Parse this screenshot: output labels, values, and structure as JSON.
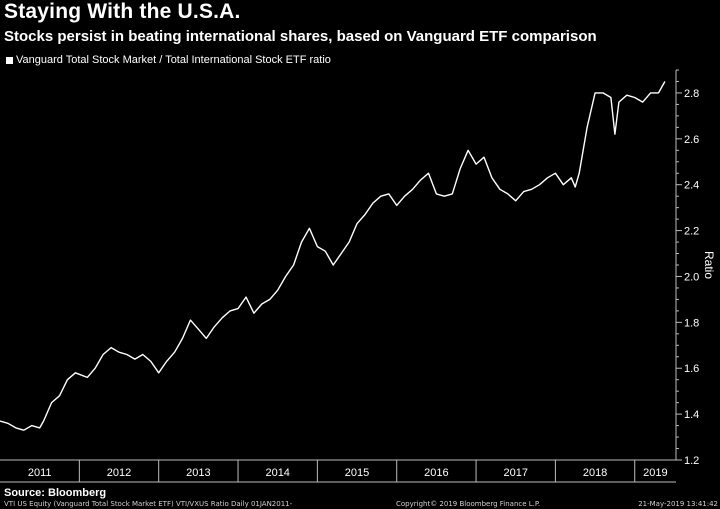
{
  "chart_data": {
    "type": "line",
    "title": "Staying With the U.S.A.",
    "subtitle": "Stocks persist in beating international shares, based on Vanguard ETF comparison",
    "xlabel": "",
    "ylabel": "Ratio",
    "ylim": [
      1.2,
      2.9
    ],
    "yticks": [
      "1.2",
      "1.4",
      "1.6",
      "1.8",
      "2.0",
      "2.2",
      "2.4",
      "2.6",
      "2.8"
    ],
    "categories": [
      "2011",
      "2012",
      "2013",
      "2014",
      "2015",
      "2016",
      "2017",
      "2018",
      "2019"
    ],
    "legend_position": "top-left",
    "grid": false,
    "series": [
      {
        "name": "Vanguard Total Stock Market / Total International Stock ETF ratio",
        "color": "#ffffff",
        "x": [
          2011.0,
          2011.1,
          2011.2,
          2011.3,
          2011.4,
          2011.5,
          2011.55,
          2011.65,
          2011.75,
          2011.85,
          2011.95,
          2012.1,
          2012.2,
          2012.3,
          2012.4,
          2012.5,
          2012.6,
          2012.7,
          2012.8,
          2012.9,
          2013.0,
          2013.1,
          2013.2,
          2013.3,
          2013.4,
          2013.5,
          2013.6,
          2013.7,
          2013.8,
          2013.9,
          2014.0,
          2014.1,
          2014.2,
          2014.3,
          2014.4,
          2014.5,
          2014.6,
          2014.7,
          2014.8,
          2014.9,
          2015.0,
          2015.1,
          2015.2,
          2015.3,
          2015.4,
          2015.5,
          2015.6,
          2015.7,
          2015.8,
          2015.9,
          2016.0,
          2016.1,
          2016.2,
          2016.3,
          2016.4,
          2016.5,
          2016.6,
          2016.7,
          2016.8,
          2016.9,
          2017.0,
          2017.1,
          2017.2,
          2017.3,
          2017.4,
          2017.5,
          2017.6,
          2017.7,
          2017.8,
          2017.9,
          2018.0,
          2018.1,
          2018.2,
          2018.25,
          2018.3,
          2018.4,
          2018.5,
          2018.6,
          2018.7,
          2018.75,
          2018.8,
          2018.9,
          2019.0,
          2019.1,
          2019.2,
          2019.3,
          2019.38
        ],
        "values": [
          1.37,
          1.36,
          1.34,
          1.33,
          1.35,
          1.34,
          1.37,
          1.45,
          1.48,
          1.55,
          1.58,
          1.56,
          1.6,
          1.66,
          1.69,
          1.67,
          1.66,
          1.64,
          1.66,
          1.63,
          1.58,
          1.63,
          1.67,
          1.73,
          1.81,
          1.77,
          1.73,
          1.78,
          1.82,
          1.85,
          1.86,
          1.91,
          1.84,
          1.88,
          1.9,
          1.94,
          2.0,
          2.05,
          2.15,
          2.21,
          2.13,
          2.11,
          2.05,
          2.1,
          2.15,
          2.23,
          2.27,
          2.32,
          2.35,
          2.36,
          2.31,
          2.35,
          2.38,
          2.42,
          2.45,
          2.36,
          2.35,
          2.36,
          2.47,
          2.55,
          2.49,
          2.52,
          2.43,
          2.38,
          2.36,
          2.33,
          2.37,
          2.38,
          2.4,
          2.43,
          2.45,
          2.4,
          2.43,
          2.39,
          2.45,
          2.65,
          2.8,
          2.8,
          2.78,
          2.62,
          2.76,
          2.79,
          2.78,
          2.76,
          2.8,
          2.8,
          2.85
        ]
      }
    ]
  },
  "legend": {
    "label": "Vanguard Total Stock Market / Total International Stock ETF ratio"
  },
  "source": "Source: Bloomberg",
  "footer": {
    "left": "VTI US Equity (Vanguard Total Stock Market ETF) VTI/VXUS Ratio  Daily 01JAN2011-",
    "mid": "Copyright© 2019 Bloomberg Finance L.P.",
    "right": "21-May-2019 13:41:42"
  }
}
